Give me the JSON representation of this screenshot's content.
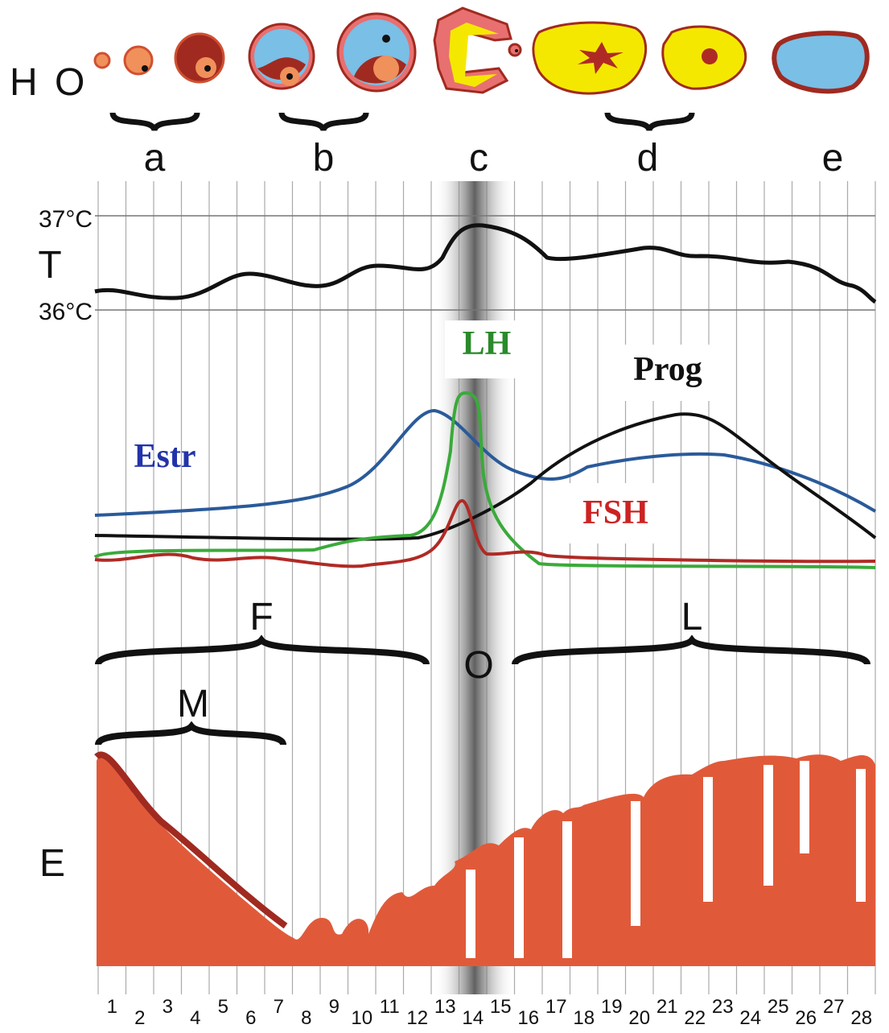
{
  "labels": {
    "hormone": "H",
    "ovary": "O"
  },
  "stages": [
    "a",
    "b",
    "c",
    "d",
    "e"
  ],
  "temperature": {
    "label": "T",
    "high": "37°C",
    "low": "36°C"
  },
  "hormones": {
    "lh": "LH",
    "prog": "Prog",
    "estr": "Estr",
    "fsh": "FSH"
  },
  "phases": {
    "follicular": "F",
    "ovulation": "O",
    "luteal": "L",
    "menstruation": "M"
  },
  "endometrium": "E",
  "days": [
    1,
    2,
    3,
    4,
    5,
    6,
    7,
    8,
    9,
    10,
    11,
    12,
    13,
    14,
    15,
    16,
    17,
    18,
    19,
    20,
    21,
    22,
    23,
    24,
    25,
    26,
    27,
    28
  ]
}
